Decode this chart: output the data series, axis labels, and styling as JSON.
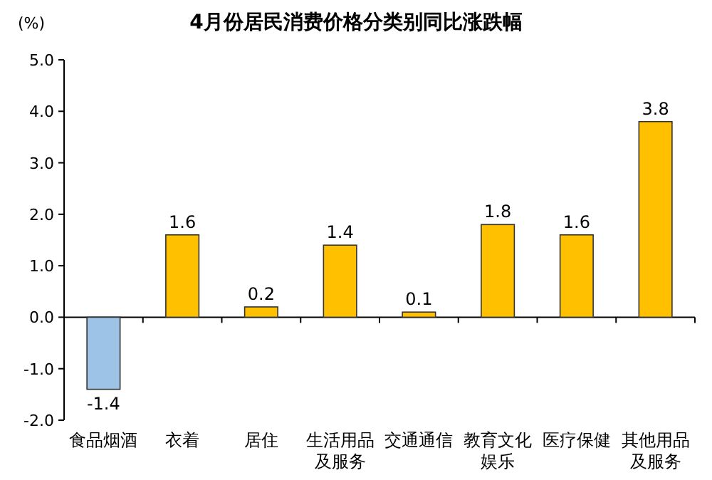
{
  "chart_data": {
    "type": "bar",
    "title": "4月份居民消费价格分类别同比涨跌幅",
    "ylabel": "(%)",
    "categories": [
      "食品烟酒",
      "衣着",
      "居住",
      "生活用品及服务",
      "交通通信",
      "教育文化娱乐",
      "医疗保健",
      "其他用品及服务"
    ],
    "values": [
      -1.4,
      1.6,
      0.2,
      1.4,
      0.1,
      1.8,
      1.6,
      3.8
    ],
    "colors": [
      "#9dc3e6",
      "#ffc000",
      "#ffc000",
      "#ffc000",
      "#ffc000",
      "#ffc000",
      "#ffc000",
      "#ffc000"
    ],
    "ylim": [
      -2,
      5
    ],
    "yticks": [
      {
        "value": 5,
        "label": "5.0"
      },
      {
        "value": 4,
        "label": "4.0"
      },
      {
        "value": 3,
        "label": "3.0"
      },
      {
        "value": 2,
        "label": "2.0"
      },
      {
        "value": 1,
        "label": "1.0"
      },
      {
        "value": 0,
        "label": "0.0"
      },
      {
        "value": -1,
        "label": "-1.0"
      },
      {
        "value": -2,
        "label": "-2.0"
      }
    ],
    "data_labels": true
  }
}
